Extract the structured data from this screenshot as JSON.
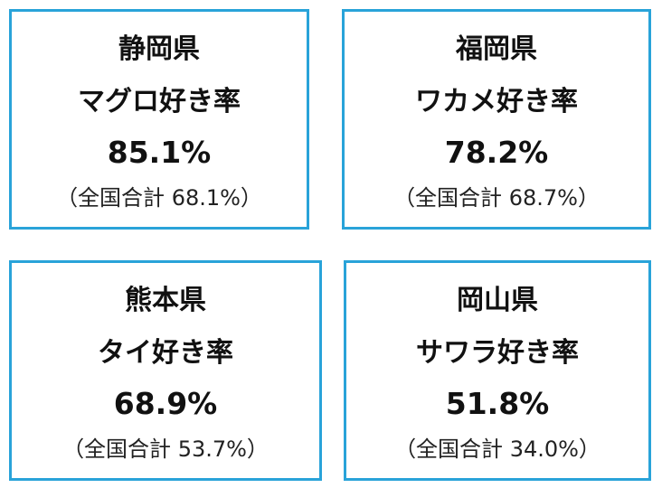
{
  "cards": [
    {
      "prefecture": "静岡県",
      "label": "マグロ好き率",
      "rate": "85.1%",
      "national": "（全国合計 68.1%）"
    },
    {
      "prefecture": "福岡県",
      "label": "ワカメ好き率",
      "rate": "78.2%",
      "national": "（全国合計 68.7%）"
    },
    {
      "prefecture": "熊本県",
      "label": "タイ好き率",
      "rate": "68.9%",
      "national": "（全国合計 53.7%）"
    },
    {
      "prefecture": "岡山県",
      "label": "サワラ好き率",
      "rate": "51.8%",
      "national": "（全国合計 34.0%）"
    }
  ],
  "colors": {
    "border": "#29a3d9",
    "text": "#111111",
    "background": "#ffffff"
  }
}
